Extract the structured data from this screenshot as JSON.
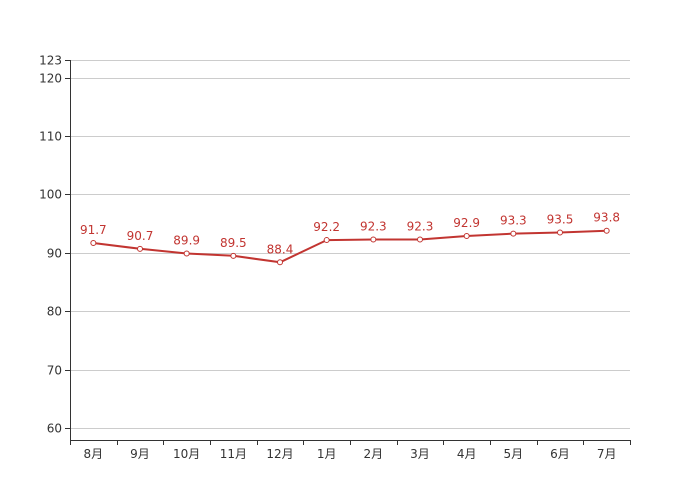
{
  "chart_data": {
    "type": "line",
    "title": "",
    "xlabel": "",
    "ylabel": "",
    "categories": [
      "8月",
      "9月",
      "10月",
      "11月",
      "12月",
      "1月",
      "2月",
      "3月",
      "4月",
      "5月",
      "6月",
      "7月"
    ],
    "series": [
      {
        "values": [
          91.7,
          90.7,
          89.9,
          89.5,
          88.4,
          92.2,
          92.3,
          92.3,
          92.9,
          93.3,
          93.5,
          93.8
        ]
      }
    ],
    "data_labels": [
      "91.7",
      "90.7",
      "89.9",
      "89.5",
      "88.4",
      "92.2",
      "92.3",
      "92.3",
      "92.9",
      "93.3",
      "93.5",
      "93.8"
    ],
    "ylim": [
      58,
      123
    ],
    "y_ticks": [
      60,
      70,
      80,
      90,
      100,
      110,
      120,
      123
    ],
    "y_tick_labels": [
      "60",
      "70",
      "80",
      "90",
      "100",
      "110",
      "120",
      "123"
    ],
    "grid": true,
    "legend": "none",
    "colors": {
      "line": "#c23531",
      "grid": "#cccccc",
      "axis": "#333333",
      "text": "#333333"
    }
  }
}
